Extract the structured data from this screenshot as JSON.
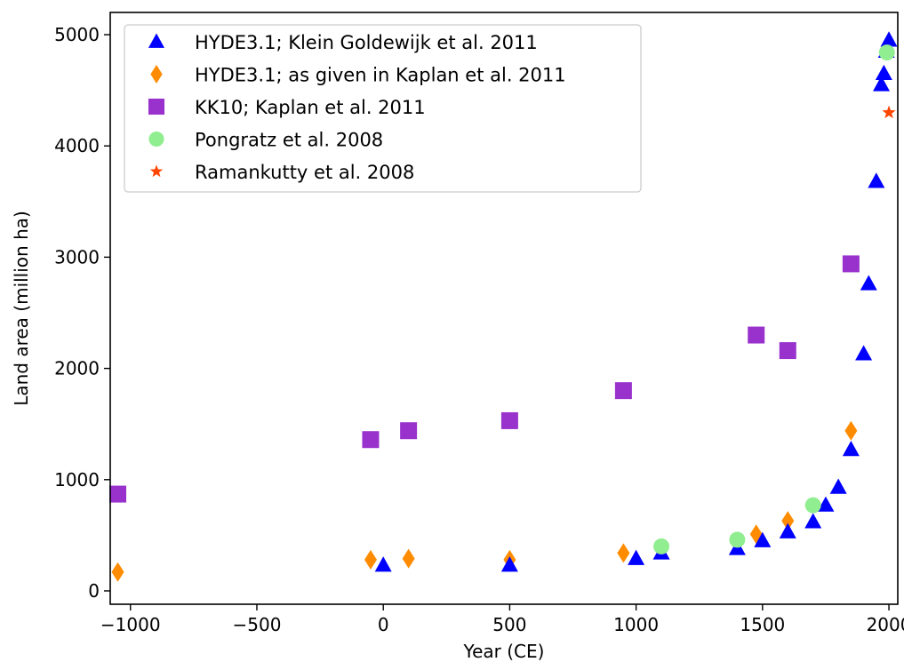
{
  "chart_data": {
    "type": "scatter",
    "xlabel": "Year (CE)",
    "ylabel": "Land area (million ha)",
    "xlim": [
      -1080,
      2035
    ],
    "ylim": [
      -120,
      5200
    ],
    "xticks": [
      -1000,
      -500,
      0,
      500,
      1000,
      1500,
      2000
    ],
    "xtick_labels": [
      "−1000",
      "−500",
      "0",
      "500",
      "1000",
      "1500",
      "2000"
    ],
    "yticks": [
      0,
      1000,
      2000,
      3000,
      4000,
      5000
    ],
    "ytick_labels": [
      "0",
      "1000",
      "2000",
      "3000",
      "4000",
      "5000"
    ],
    "grid": false,
    "legend_position": "top-left",
    "series": [
      {
        "name": "HYDE3.1; Klein Goldewijk et al. 2011",
        "marker": "triangle",
        "color": "#0000ff",
        "points": [
          [
            0,
            230
          ],
          [
            500,
            230
          ],
          [
            1000,
            290
          ],
          [
            1100,
            340
          ],
          [
            1400,
            380
          ],
          [
            1500,
            450
          ],
          [
            1600,
            530
          ],
          [
            1700,
            620
          ],
          [
            1750,
            770
          ],
          [
            1800,
            930
          ],
          [
            1850,
            1270
          ],
          [
            1900,
            2130
          ],
          [
            1920,
            2760
          ],
          [
            1950,
            3680
          ],
          [
            1970,
            4550
          ],
          [
            1980,
            4650
          ],
          [
            1990,
            4850
          ],
          [
            2000,
            4950
          ]
        ]
      },
      {
        "name": "HYDE3.1; as given in Kaplan et al. 2011",
        "marker": "diamond",
        "color": "#ff8c00",
        "points": [
          [
            -1050,
            170
          ],
          [
            -50,
            280
          ],
          [
            100,
            290
          ],
          [
            500,
            280
          ],
          [
            950,
            340
          ],
          [
            1475,
            510
          ],
          [
            1600,
            630
          ],
          [
            1850,
            1440
          ]
        ]
      },
      {
        "name": "KK10; Kaplan et al. 2011",
        "marker": "square",
        "color": "#9932cc",
        "points": [
          [
            -1050,
            870
          ],
          [
            -50,
            1360
          ],
          [
            100,
            1440
          ],
          [
            500,
            1530
          ],
          [
            950,
            1800
          ],
          [
            1475,
            2300
          ],
          [
            1600,
            2160
          ],
          [
            1850,
            2940
          ]
        ]
      },
      {
        "name": "Pongratz et al. 2008",
        "marker": "circle",
        "color": "#90ee90",
        "points": [
          [
            1100,
            400
          ],
          [
            1400,
            460
          ],
          [
            1700,
            770
          ],
          [
            1992,
            4840
          ]
        ]
      },
      {
        "name": "Ramankutty et al. 2008",
        "marker": "star",
        "color": "#ff4500",
        "points": [
          [
            2000,
            4300
          ]
        ]
      }
    ]
  }
}
